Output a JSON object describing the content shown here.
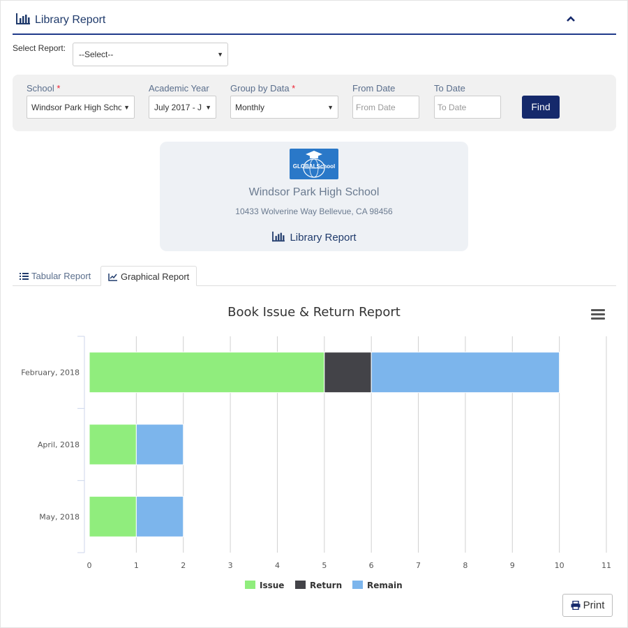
{
  "header": {
    "title": "Library Report",
    "icon": "bar-chart-icon",
    "collapse_icon": "chevron-up-icon"
  },
  "select_report": {
    "label": "Select Report:",
    "value": "--Select--"
  },
  "filters": {
    "school": {
      "label": "School",
      "required_mark": "*",
      "value": "Windsor Park High Scho"
    },
    "academic_year": {
      "label": "Academic Year",
      "value": "July 2017 - J"
    },
    "group_by": {
      "label": "Group by Data",
      "required_mark": "*",
      "value": "Monthly"
    },
    "from_date": {
      "label": "From Date",
      "placeholder": "From Date"
    },
    "to_date": {
      "label": "To Date",
      "placeholder": "To Date"
    },
    "find_label": "Find"
  },
  "school_card": {
    "logo_text": "GLOBALSchool",
    "name": "Windsor Park High School",
    "address": "10433 Wolverine Way Bellevue, CA 98456",
    "report_title": "Library Report"
  },
  "tabs": [
    {
      "label": "Tabular Report",
      "icon": "list-icon",
      "active": false
    },
    {
      "label": "Graphical Report",
      "icon": "line-chart-icon",
      "active": true
    }
  ],
  "chart_data": {
    "type": "bar",
    "orientation": "horizontal",
    "stacked": true,
    "title": "Book Issue & Return Report",
    "categories": [
      "February, 2018",
      "April, 2018",
      "May, 2018"
    ],
    "series": [
      {
        "name": "Issue",
        "color": "#90ed7d",
        "values": [
          5,
          1,
          1
        ]
      },
      {
        "name": "Return",
        "color": "#434348",
        "values": [
          1,
          0,
          0
        ]
      },
      {
        "name": "Remain",
        "color": "#7cb5ec",
        "values": [
          4,
          1,
          1
        ]
      }
    ],
    "xlim": [
      0,
      11
    ],
    "xticks": [
      "0",
      "1",
      "2",
      "3",
      "4",
      "5",
      "6",
      "7",
      "8",
      "9",
      "10",
      "11"
    ],
    "grid": true,
    "legend": "bottom-center"
  },
  "print_label": "Print",
  "colors": {
    "brand": "#15296b",
    "header_rule": "#1f3a8a",
    "logo_bg": "#2a78c8"
  }
}
